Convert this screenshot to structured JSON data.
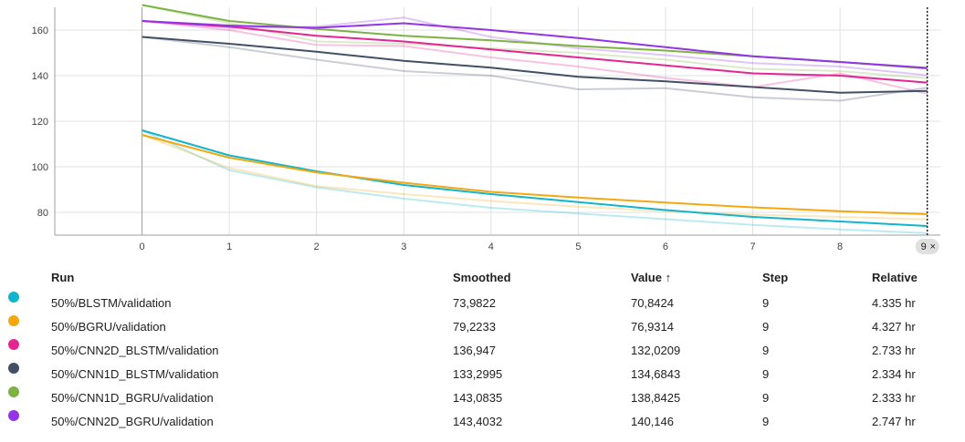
{
  "chart_data": {
    "type": "line",
    "x": [
      0,
      1,
      2,
      3,
      4,
      5,
      6,
      7,
      8,
      9
    ],
    "xlim": [
      -1,
      9.15
    ],
    "ylim": [
      70,
      170
    ],
    "x_ticks": [
      "0",
      "1",
      "2",
      "3",
      "4",
      "5",
      "6",
      "7",
      "8",
      "9"
    ],
    "y_ticks": [
      "80",
      "100",
      "120",
      "140",
      "160"
    ],
    "hover_step": "9",
    "hover_close": "×",
    "series": [
      {
        "name": "50%/BLSTM/validation",
        "color": "#12b5cb",
        "smoothed": [
          116,
          105,
          98,
          92,
          88,
          84.5,
          81,
          78,
          76,
          73.98
        ],
        "raw": [
          116,
          98.5,
          91,
          86,
          82,
          79.5,
          77,
          74.5,
          72.5,
          70.84
        ]
      },
      {
        "name": "50%/BGRU/validation",
        "color": "#f4a80f",
        "smoothed": [
          114,
          104,
          97.5,
          93,
          89,
          86.5,
          84.3,
          82.2,
          80.5,
          79.22
        ],
        "raw": [
          114,
          99.5,
          91.5,
          88,
          85,
          82.5,
          80.5,
          79,
          78,
          76.93
        ]
      },
      {
        "name": "50%/CNN2D_BLSTM/validation",
        "color": "#e52592",
        "smoothed": [
          164,
          161.5,
          157.5,
          155,
          151.5,
          148,
          144.5,
          141,
          140,
          136.95
        ],
        "raw": [
          164,
          160,
          153.5,
          153,
          148,
          144,
          139,
          135,
          141,
          132.02
        ]
      },
      {
        "name": "50%/CNN1D_BLSTM/validation",
        "color": "#425066",
        "smoothed": [
          157,
          154,
          150.5,
          146.5,
          143.5,
          139.5,
          137.5,
          135,
          132.5,
          133.3
        ],
        "raw": [
          157,
          152.5,
          147,
          142,
          140,
          134,
          134.5,
          130.5,
          129,
          134.68
        ]
      },
      {
        "name": "50%/CNN1D_BGRU/validation",
        "color": "#7cb342",
        "smoothed": [
          171,
          164,
          160.5,
          157.5,
          155.5,
          153,
          151,
          148.5,
          146,
          143.08
        ],
        "raw": [
          171,
          163,
          155,
          154,
          152,
          150,
          147,
          143,
          142,
          138.84
        ]
      },
      {
        "name": "50%/CNN2D_BGRU/validation",
        "color": "#9334e6",
        "smoothed": [
          164,
          162,
          161,
          163,
          160,
          156.5,
          152.5,
          148.5,
          146,
          143.4
        ],
        "raw": [
          164,
          161,
          161.5,
          165.5,
          157,
          152,
          149,
          145.5,
          144,
          140.15
        ]
      }
    ]
  },
  "table": {
    "headers": {
      "run": "Run",
      "smoothed": "Smoothed",
      "value": "Value ↑",
      "step": "Step",
      "relative": "Relative"
    },
    "rows": [
      {
        "run": "50%/BLSTM/validation",
        "smoothed": "73,9822",
        "value": "70,8424",
        "step": "9",
        "relative": "4.335 hr",
        "color": "#12b5cb"
      },
      {
        "run": "50%/BGRU/validation",
        "smoothed": "79,2233",
        "value": "76,9314",
        "step": "9",
        "relative": "4.327 hr",
        "color": "#f4a80f"
      },
      {
        "run": "50%/CNN2D_BLSTM/validation",
        "smoothed": "136,947",
        "value": "132,0209",
        "step": "9",
        "relative": "2.733 hr",
        "color": "#e52592"
      },
      {
        "run": "50%/CNN1D_BLSTM/validation",
        "smoothed": "133,2995",
        "value": "134,6843",
        "step": "9",
        "relative": "2.334 hr",
        "color": "#425066"
      },
      {
        "run": "50%/CNN1D_BGRU/validation",
        "smoothed": "143,0835",
        "value": "138,8425",
        "step": "9",
        "relative": "2.333 hr",
        "color": "#7cb342"
      },
      {
        "run": "50%/CNN2D_BGRU/validation",
        "smoothed": "143,4032",
        "value": "140,146",
        "step": "9",
        "relative": "2.747 hr",
        "color": "#9334e6"
      }
    ]
  }
}
